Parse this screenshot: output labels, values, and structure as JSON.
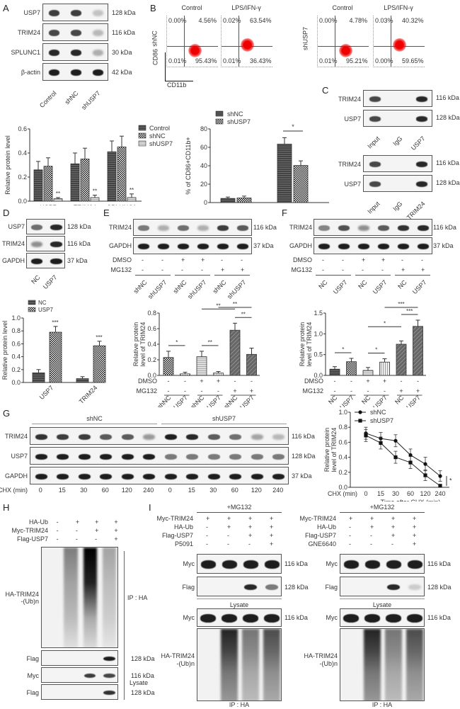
{
  "panels": {
    "A": {
      "label": "A",
      "blot": {
        "rows": [
          {
            "name": "USP7",
            "kda": "128 kDa",
            "intensity": [
              0.85,
              0.85,
              0.2
            ]
          },
          {
            "name": "TRIM24",
            "kda": "116 kDa",
            "intensity": [
              0.8,
              0.8,
              0.25
            ]
          },
          {
            "name": "SPLUNC1",
            "kda": "30 kDa",
            "intensity": [
              0.95,
              0.95,
              0.3
            ]
          },
          {
            "name": "β-actin",
            "kda": "42 kDa",
            "intensity": [
              1,
              1,
              1
            ]
          }
        ],
        "lanes": [
          "Control",
          "shNC",
          "shUSP7"
        ]
      }
    },
    "B": {
      "label": "B",
      "flow": [
        {
          "row": "shNC",
          "title": "Control",
          "ul": "0.00%",
          "ur": "4.56%",
          "ll": "0.01%",
          "lr": "95.43%"
        },
        {
          "row": "",
          "title": "LPS/IFN-γ",
          "ul": "0.02%",
          "ur": "63.54%",
          "ll": "0.01%",
          "lr": "36.43%"
        },
        {
          "row": "shUSP7",
          "title": "Control",
          "ul": "0.00%",
          "ur": "4.78%",
          "ll": "0.01%",
          "lr": "95.21%"
        },
        {
          "row": "",
          "title": "LPS/IFN-γ",
          "ul": "0.03%",
          "ur": "40.32%",
          "ll": "0.00%",
          "lr": "59.65%"
        }
      ],
      "y_axis": "CD86",
      "x_axis": "CD11b"
    },
    "C": {
      "label": "C",
      "blot1": {
        "rows": [
          {
            "name": "TRIM24",
            "kda": "116 kDa"
          },
          {
            "name": "USP7",
            "kda": "128 kDa"
          }
        ],
        "lanes": [
          "Input",
          "IgG",
          "USP7"
        ]
      },
      "blot2": {
        "rows": [
          {
            "name": "TRIM24",
            "kda": "116 kDa"
          },
          {
            "name": "USP7",
            "kda": "128 kDa"
          }
        ],
        "lanes": [
          "Input",
          "IgG",
          "TRIM24"
        ]
      }
    },
    "D": {
      "label": "D",
      "blot": {
        "rows": [
          {
            "name": "USP7",
            "kda": "128 kDa"
          },
          {
            "name": "TRIM24",
            "kda": "116 kDa"
          },
          {
            "name": "GAPDH",
            "kda": "37 kDa"
          }
        ],
        "lanes": [
          "NC",
          "USP7"
        ]
      }
    },
    "E": {
      "label": "E",
      "blot": {
        "rows": [
          {
            "name": "TRIM24",
            "kda": "116 kDa"
          },
          {
            "name": "GAPDH",
            "kda": "37 kDa"
          }
        ]
      },
      "treatments": {
        "DMSO": [
          "-",
          "-",
          "+",
          "+",
          "-",
          "-"
        ],
        "MG132": [
          "-",
          "-",
          "-",
          "-",
          "+",
          "+"
        ]
      },
      "lanes": [
        "shNC",
        "shUSP7",
        "shNC",
        "shUSP7",
        "shNC",
        "shUSP7"
      ]
    },
    "F": {
      "label": "F",
      "blot": {
        "rows": [
          {
            "name": "TRIM24",
            "kda": "116 kDa"
          },
          {
            "name": "GAPDH",
            "kda": "37 kDa"
          }
        ]
      },
      "treatments": {
        "DMSO": [
          "-",
          "-",
          "+",
          "+",
          "-",
          "-"
        ],
        "MG132": [
          "-",
          "-",
          "-",
          "-",
          "+",
          "+"
        ]
      },
      "lanes": [
        "NC",
        "USP7",
        "NC",
        "USP7",
        "NC",
        "USP7"
      ]
    },
    "G": {
      "label": "G",
      "groups": [
        "shNC",
        "shUSP7"
      ],
      "blot": {
        "rows": [
          {
            "name": "TRIM24",
            "kda": "116 kDa"
          },
          {
            "name": "USP7",
            "kda": "128 kDa"
          },
          {
            "name": "GAPDH",
            "kda": "37 kDa"
          }
        ]
      },
      "chx_label": "CHX (min)",
      "chx": [
        "0",
        "15",
        "30",
        "60",
        "120",
        "240",
        "0",
        "15",
        "30",
        "60",
        "120",
        "240"
      ]
    },
    "H": {
      "label": "H",
      "conditions": [
        {
          "name": "HA-Ub",
          "v": [
            "-",
            "+",
            "+",
            "+"
          ]
        },
        {
          "name": "Myc-TRIM24",
          "v": [
            "-",
            "-",
            "+",
            "+"
          ]
        },
        {
          "name": "Flag-USP7",
          "v": [
            "-",
            "-",
            "-",
            "+"
          ]
        }
      ],
      "ub_label_1": "HA-TRIM24",
      "ub_label_2": "-(Ub)n",
      "ip_label": "IP : HA",
      "lysate_label": "Lysate",
      "flag": {
        "name": "Flag",
        "kda": "128 kDa"
      },
      "myc": {
        "name": "Myc",
        "kda": "116 kDa"
      },
      "flag2": {
        "name": "Flag",
        "kda": "128 kDa"
      }
    },
    "I": {
      "label": "I",
      "mg132": "+MG132",
      "left": {
        "conditions": [
          {
            "name": "Myc-TRIM24",
            "v": [
              "+",
              "+",
              "+",
              "+"
            ]
          },
          {
            "name": "HA-Ub",
            "v": [
              "-",
              "+",
              "+",
              "+"
            ]
          },
          {
            "name": "Flag-USP7",
            "v": [
              "-",
              "-",
              "+",
              "+"
            ]
          },
          {
            "name": "P5091",
            "v": [
              "-",
              "-",
              "-",
              "+"
            ]
          }
        ]
      },
      "right": {
        "conditions": [
          {
            "name": "Myc-TRIM24",
            "v": [
              "+",
              "+",
              "+",
              "+"
            ]
          },
          {
            "name": "HA-Ub",
            "v": [
              "-",
              "+",
              "+",
              "+"
            ]
          },
          {
            "name": "Flag-USP7",
            "v": [
              "-",
              "-",
              "+",
              "+"
            ]
          },
          {
            "name": "GNE6640",
            "v": [
              "-",
              "-",
              "-",
              "+"
            ]
          }
        ]
      },
      "myc": {
        "name": "Myc",
        "kda": "116 kDa"
      },
      "flag": {
        "name": "Flag",
        "kda": "128 kDa"
      },
      "lysate_label": "Lysate",
      "ub_label_1": "HA-TRIM24",
      "ub_label_2": "-(Ub)n",
      "ip_label": "IP : HA"
    }
  },
  "chart_data": [
    {
      "panel": "A",
      "type": "bar",
      "title": "",
      "xlabel": "",
      "ylabel": "Relative protein level",
      "ylim": [
        0,
        0.6
      ],
      "yticks": [
        "0.0",
        "0.2",
        "0.4",
        "0.6"
      ],
      "categories": [
        "USP7",
        "TRIM24",
        "SPLUNC1"
      ],
      "series": [
        {
          "name": "Control",
          "values": [
            0.26,
            0.31,
            0.41
          ],
          "errors": [
            0.07,
            0.09,
            0.09
          ]
        },
        {
          "name": "shNC",
          "values": [
            0.29,
            0.35,
            0.45
          ],
          "errors": [
            0.07,
            0.09,
            0.09
          ]
        },
        {
          "name": "shUSP7",
          "values": [
            0.02,
            0.03,
            0.03
          ],
          "errors": [
            0.01,
            0.02,
            0.03
          ]
        }
      ],
      "annotations": [
        "**",
        "**",
        "**"
      ],
      "legend_position": "top-right"
    },
    {
      "panel": "B",
      "type": "bar",
      "title": "",
      "xlabel": "",
      "ylabel": "% of CD86+CD11b+",
      "ylim": [
        0,
        80
      ],
      "yticks": [
        "0",
        "20",
        "40",
        "60",
        "80"
      ],
      "categories": [
        "Control",
        "LPS/IFN-γ"
      ],
      "series": [
        {
          "name": "shNC",
          "values": [
            4.5,
            63.5
          ],
          "errors": [
            1.5,
            7
          ]
        },
        {
          "name": "shUSP7",
          "values": [
            5,
            40.3
          ],
          "errors": [
            2,
            5
          ]
        }
      ],
      "annotations": [
        "",
        "*"
      ],
      "legend_position": "top-left"
    },
    {
      "panel": "D",
      "type": "bar",
      "title": "",
      "xlabel": "",
      "ylabel": "Relative protein level",
      "ylim": [
        0,
        1.0
      ],
      "yticks": [
        "0.0",
        "0.2",
        "0.4",
        "0.6",
        "0.8",
        "1.0"
      ],
      "categories": [
        "USP7",
        "TRIM24"
      ],
      "series": [
        {
          "name": "NC",
          "values": [
            0.15,
            0.06
          ],
          "errors": [
            0.05,
            0.03
          ]
        },
        {
          "name": "USP7",
          "values": [
            0.78,
            0.57
          ],
          "errors": [
            0.09,
            0.07
          ]
        }
      ],
      "annotations": [
        "***",
        "***"
      ],
      "legend_position": "top-left"
    },
    {
      "panel": "E",
      "type": "bar",
      "title": "",
      "xlabel": "",
      "ylabel": "Relative protein level of TRIM24",
      "ylim": [
        0,
        0.8
      ],
      "yticks": [
        "0.0",
        "0.2",
        "0.4",
        "0.6",
        "0.8"
      ],
      "categories": [
        "shNC",
        "shUSP7",
        "shNC",
        "shUSP7",
        "shNC",
        "shUSP7"
      ],
      "DMSO": [
        "-",
        "-",
        "+",
        "+",
        "-",
        "-"
      ],
      "MG132": [
        "-",
        "-",
        "-",
        "-",
        "+",
        "+"
      ],
      "values": [
        0.23,
        0.02,
        0.24,
        0.03,
        0.58,
        0.27
      ],
      "errors": [
        0.08,
        0.02,
        0.07,
        0.02,
        0.09,
        0.08
      ],
      "comparisons": [
        {
          "pair": [
            0,
            1
          ],
          "sig": "*"
        },
        {
          "pair": [
            2,
            3
          ],
          "sig": "**"
        },
        {
          "pair": [
            2,
            4
          ],
          "sig": "**"
        },
        {
          "pair": [
            3,
            5
          ],
          "sig": "**"
        },
        {
          "pair": [
            4,
            5
          ],
          "sig": "**"
        }
      ]
    },
    {
      "panel": "F",
      "type": "bar",
      "title": "",
      "xlabel": "",
      "ylabel": "Relative protein level of TRIM24",
      "ylim": [
        0,
        1.5
      ],
      "yticks": [
        "0.0",
        "0.5",
        "1.0",
        "1.5"
      ],
      "categories": [
        "NC",
        "USP7",
        "NC",
        "USP7",
        "NC",
        "USP7"
      ],
      "DMSO": [
        "-",
        "-",
        "+",
        "+",
        "-",
        "-"
      ],
      "MG132": [
        "-",
        "-",
        "-",
        "-",
        "+",
        "+"
      ],
      "values": [
        0.15,
        0.33,
        0.12,
        0.32,
        0.75,
        1.18
      ],
      "errors": [
        0.06,
        0.08,
        0.07,
        0.08,
        0.08,
        0.15
      ],
      "comparisons": [
        {
          "pair": [
            0,
            1
          ],
          "sig": "*"
        },
        {
          "pair": [
            2,
            3
          ],
          "sig": "*"
        },
        {
          "pair": [
            2,
            4
          ],
          "sig": "*"
        },
        {
          "pair": [
            3,
            5
          ],
          "sig": "***"
        },
        {
          "pair": [
            4,
            5
          ],
          "sig": "***"
        }
      ]
    },
    {
      "panel": "G",
      "type": "line",
      "title": "",
      "xlabel": "Time after CHX (min)",
      "ylabel": "Relative protein level of TRIM24",
      "ylim": [
        0,
        1.0
      ],
      "yticks": [
        "0.0",
        "0.2",
        "0.4",
        "0.6",
        "0.8",
        "1.0"
      ],
      "x": [
        "0",
        "15",
        "30",
        "60",
        "120",
        "240"
      ],
      "x_prefix": "CHX (min)",
      "series": [
        {
          "name": "shNC",
          "marker": "circle",
          "values": [
            0.72,
            0.65,
            0.62,
            0.43,
            0.31,
            0.15
          ],
          "errors": [
            0.08,
            0.08,
            0.08,
            0.08,
            0.09,
            0.07
          ]
        },
        {
          "name": "shUSP7",
          "marker": "square",
          "values": [
            0.69,
            0.59,
            0.4,
            0.33,
            0.16,
            0.02
          ],
          "errors": [
            0.08,
            0.08,
            0.08,
            0.08,
            0.07,
            0.02
          ]
        }
      ],
      "annotations": [
        "*"
      ],
      "legend_position": "top-left"
    }
  ]
}
